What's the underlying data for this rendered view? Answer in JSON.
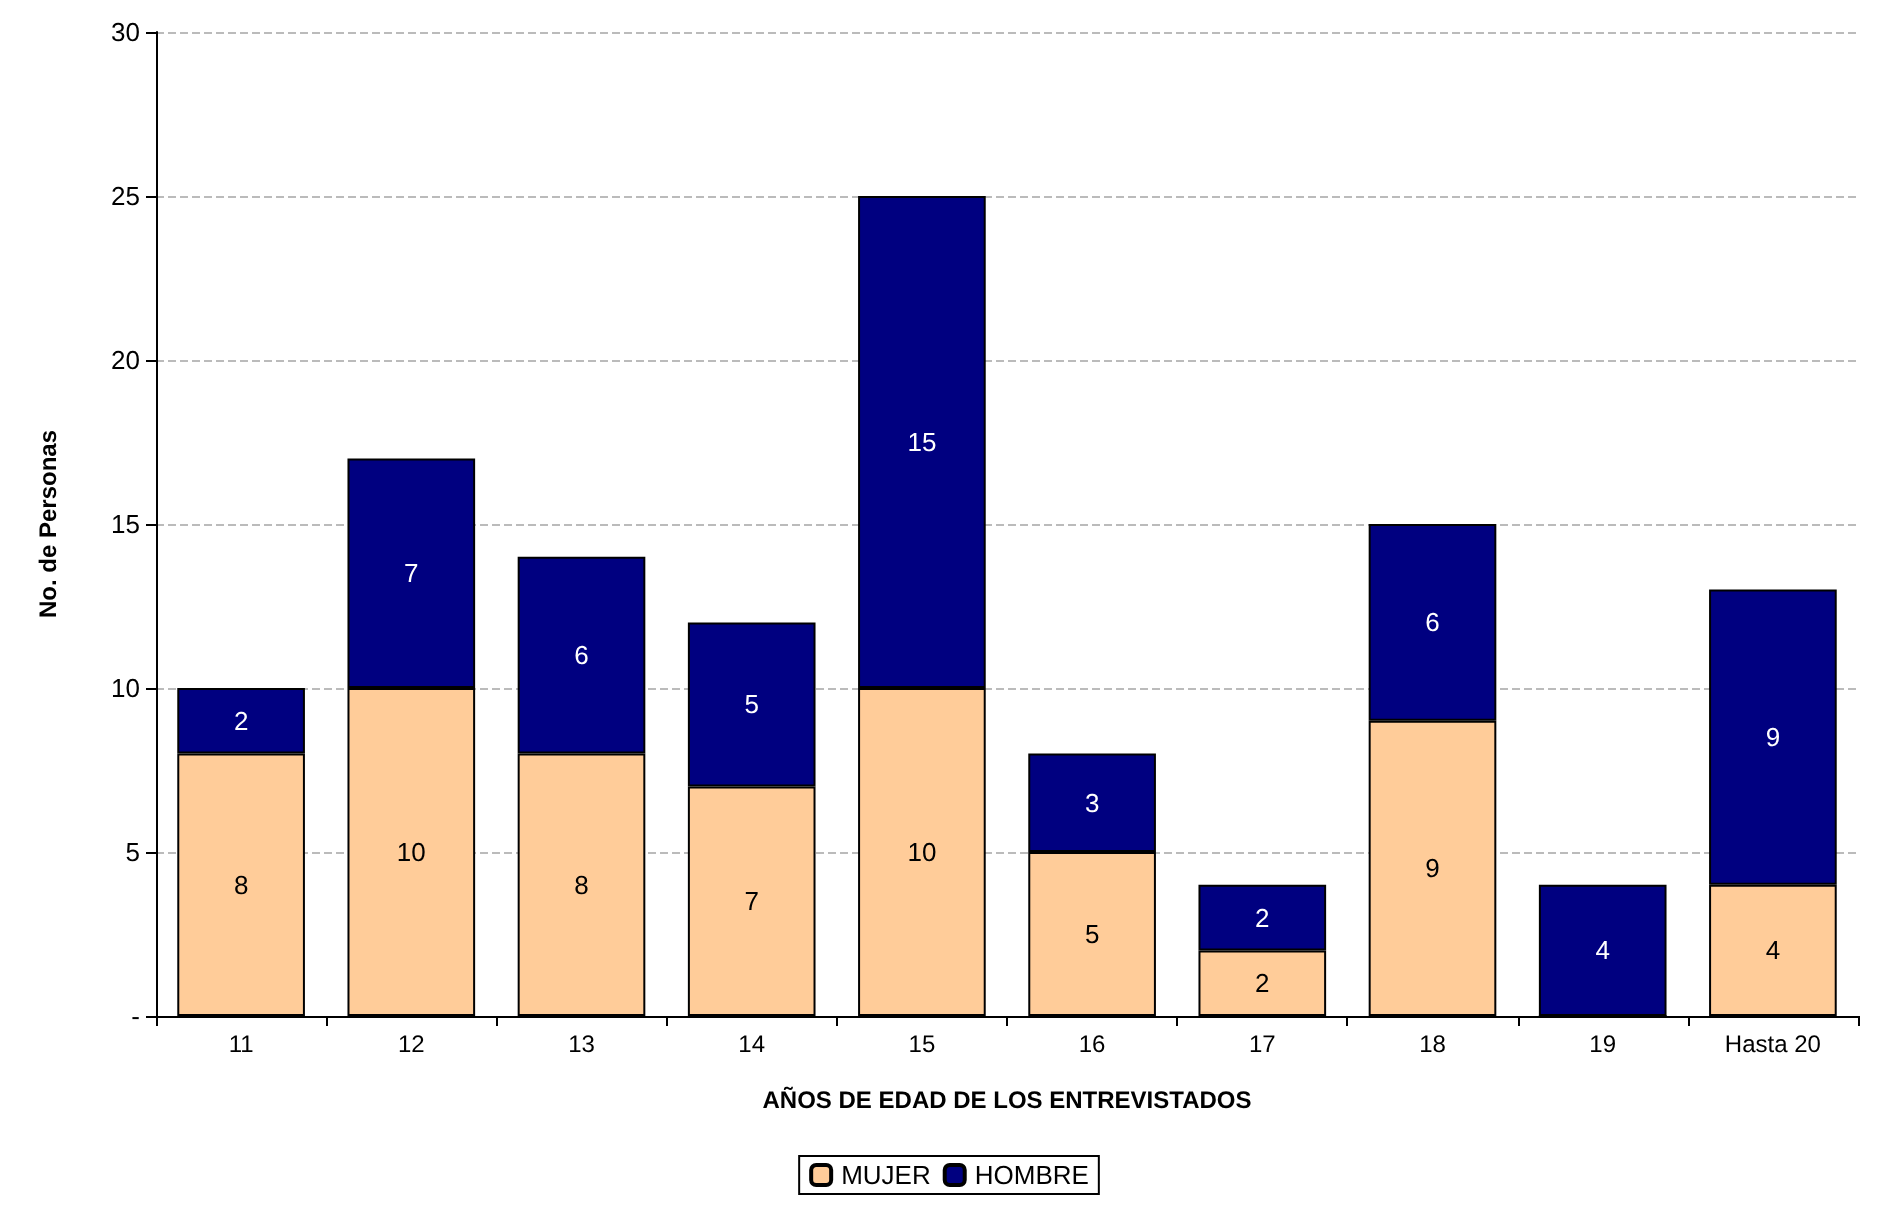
{
  "chart_data": {
    "type": "bar",
    "stacked": true,
    "xlabel": "AÑOS DE EDAD DE LOS ENTREVISTADOS",
    "ylabel": "No. de Personas",
    "categories": [
      "11",
      "12",
      "13",
      "14",
      "15",
      "16",
      "17",
      "18",
      "19",
      "Hasta 20"
    ],
    "series": [
      {
        "name": "MUJER",
        "color": "#ffcc99",
        "values": [
          8,
          10,
          8,
          7,
          10,
          5,
          2,
          9,
          0,
          4
        ],
        "value_labels": [
          "8",
          "10",
          "8",
          "7",
          "10",
          "5",
          "2",
          "9",
          null,
          "4"
        ]
      },
      {
        "name": "HOMBRE",
        "color": "#000080",
        "values": [
          2,
          7,
          6,
          5,
          15,
          3,
          2,
          6,
          4,
          9
        ],
        "value_labels": [
          "2",
          "7",
          "6",
          "5",
          "15",
          "3",
          "2",
          "6",
          "4",
          "9"
        ]
      }
    ],
    "ylim": [
      0,
      30
    ],
    "yticks": [
      {
        "value": 0,
        "label": "-"
      },
      5,
      10,
      15,
      20,
      25,
      30
    ],
    "grid": "y",
    "legend": "bottom"
  }
}
